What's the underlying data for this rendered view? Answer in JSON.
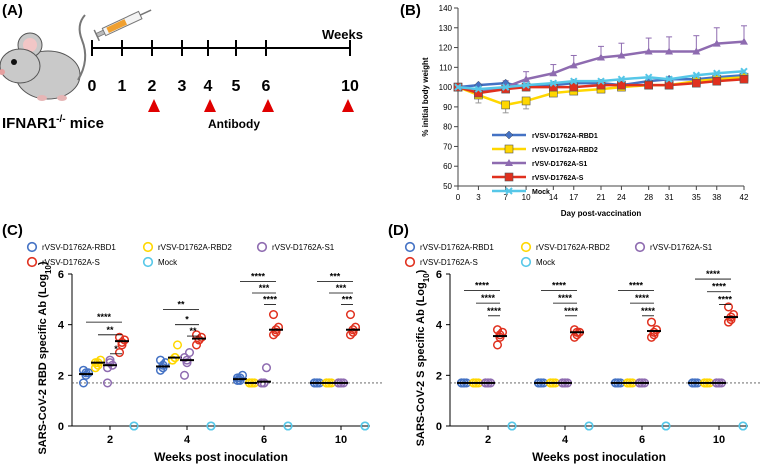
{
  "panels": {
    "a": "(A)",
    "b": "(B)",
    "c": "(C)",
    "d": "(D)"
  },
  "timeline": {
    "weeks_label": "Weeks",
    "ticks": [
      "0",
      "1",
      "2",
      "3",
      "4",
      "5",
      "6",
      "10"
    ],
    "mouse_label": "IFNAR1",
    "mouse_sup": "-/-",
    "mouse_suffix": " mice",
    "antibody_label": "Antibody",
    "antibody_weeks": [
      "2",
      "4",
      "6",
      "10"
    ]
  },
  "colors": {
    "rbd1": "#4472C4",
    "rbd2": "#FFD700",
    "s1": "#8E6BB0",
    "s": "#E0301E",
    "mock": "#56C7E8"
  },
  "chart_data": [
    {
      "type": "line",
      "panel": "B",
      "title": "",
      "xlabel": "Day post-vaccination",
      "ylabel": "% initial body weight",
      "x": [
        0,
        3,
        7,
        10,
        14,
        17,
        21,
        24,
        28,
        31,
        35,
        38,
        42
      ],
      "ylim": [
        50,
        140
      ],
      "yticks": [
        50,
        60,
        70,
        80,
        90,
        100,
        110,
        120,
        130,
        140
      ],
      "series": [
        {
          "name": "rVSV-D1762A-RBD1",
          "color": "#4472C4",
          "marker": "diamond",
          "values": [
            100,
            101,
            102,
            100,
            101,
            102,
            102,
            101,
            103,
            104,
            104,
            105,
            106
          ]
        },
        {
          "name": "rVSV-D1762A-RBD2",
          "color": "#FFD700",
          "marker": "square",
          "values": [
            100,
            96,
            91,
            93,
            97,
            98,
            99,
            100,
            101,
            101,
            103,
            104,
            105
          ]
        },
        {
          "name": "rVSV-D1762A-S1",
          "color": "#8E6BB0",
          "marker": "triangle",
          "values": [
            100,
            98,
            100,
            104,
            107,
            111,
            115,
            116,
            118,
            118,
            118,
            122,
            123
          ]
        },
        {
          "name": "rVSV-D1762A-S",
          "color": "#E0301E",
          "marker": "square",
          "values": [
            100,
            97,
            99,
            100,
            100,
            100,
            101,
            101,
            101,
            101,
            102,
            103,
            104
          ]
        },
        {
          "name": "Mock",
          "color": "#56C7E8",
          "marker": "x",
          "values": [
            100,
            99,
            100,
            101,
            102,
            103,
            103,
            104,
            105,
            104,
            106,
            107,
            108
          ]
        }
      ]
    },
    {
      "type": "scatter",
      "panel": "C",
      "xlabel": "Weeks post inoculation",
      "ylabel_pre": "SARS-CoV-2 RBD specific Ab (Log",
      "ylabel_sub": "10",
      "ylabel_post": ")",
      "categories": [
        "2",
        "4",
        "6",
        "10"
      ],
      "ylim": [
        0,
        6
      ],
      "yticks": [
        0,
        2,
        4,
        6
      ],
      "limit_of_detection": 1.7,
      "legend": [
        "rVSV-D1762A-RBD1",
        "rVSV-D1762A-RBD2",
        "rVSV-D1762A-S1",
        "rVSV-D1762A-S",
        "Mock"
      ],
      "series": [
        {
          "name": "rVSV-D1762A-RBD1",
          "color": "#4472C4",
          "points": [
            [
              1.7,
              2.0,
              2.1,
              2.2,
              2.1
            ],
            [
              2.2,
              2.3,
              2.5,
              2.6,
              2.4
            ],
            [
              1.8,
              1.9,
              2.0,
              1.9,
              1.8
            ],
            [
              1.7,
              1.7,
              1.7,
              1.7,
              1.7
            ]
          ],
          "means": [
            2.05,
            2.35,
            1.85,
            1.7
          ]
        },
        {
          "name": "rVSV-D1762A-RBD2",
          "color": "#FFD700",
          "points": [
            [
              2.3,
              2.5,
              2.6,
              2.5,
              2.4
            ],
            [
              2.6,
              2.7,
              3.2,
              2.6,
              2.7
            ],
            [
              1.7,
              1.7,
              1.7,
              1.7,
              1.7
            ],
            [
              1.7,
              1.7,
              1.7,
              1.7,
              1.7
            ]
          ],
          "means": [
            2.5,
            2.7,
            1.7,
            1.7
          ]
        },
        {
          "name": "rVSV-D1762A-S1",
          "color": "#8E6BB0",
          "points": [
            [
              1.7,
              2.5,
              2.4,
              2.3,
              2.6
            ],
            [
              2.0,
              2.6,
              2.9,
              2.7,
              2.5
            ],
            [
              1.7,
              1.7,
              2.3,
              1.7,
              1.7
            ],
            [
              1.7,
              1.7,
              1.7,
              1.7,
              1.7
            ]
          ],
          "means": [
            2.4,
            2.6,
            1.75,
            1.7
          ]
        },
        {
          "name": "rVSV-D1762A-S",
          "color": "#E0301E",
          "points": [
            [
              2.9,
              3.2,
              3.4,
              3.5,
              3.3
            ],
            [
              3.2,
              3.4,
              3.5,
              3.6,
              3.4
            ],
            [
              3.6,
              3.8,
              3.9,
              4.4,
              3.7
            ],
            [
              3.6,
              3.8,
              3.9,
              4.4,
              3.7
            ]
          ],
          "means": [
            3.35,
            3.45,
            3.8,
            3.8
          ]
        },
        {
          "name": "Mock",
          "color": "#56C7E8",
          "points": [
            [
              0,
              0
            ],
            [
              0,
              0
            ],
            [
              0,
              0
            ],
            [
              0,
              0
            ]
          ],
          "means": [
            0,
            0,
            0,
            0
          ]
        }
      ],
      "significance": [
        [
          {
            "label": "*",
            "level": 2.85
          },
          {
            "label": "**",
            "level": 3.6
          },
          {
            "label": "****",
            "level": 4.1
          }
        ],
        [
          {
            "label": "**",
            "level": 3.55
          },
          {
            "label": "*",
            "level": 4.0
          },
          {
            "label": "**",
            "level": 4.6
          }
        ],
        [
          {
            "label": "****",
            "level": 4.8
          },
          {
            "label": "***",
            "level": 5.25
          },
          {
            "label": "****",
            "level": 5.7
          }
        ],
        [
          {
            "label": "***",
            "level": 4.8
          },
          {
            "label": "***",
            "level": 5.25
          },
          {
            "label": "***",
            "level": 5.7
          }
        ]
      ]
    },
    {
      "type": "scatter",
      "panel": "D",
      "xlabel": "Weeks post inoculation",
      "ylabel_pre": "SARS-CoV-2 S specific Ab (Log",
      "ylabel_sub": "10",
      "ylabel_post": ")",
      "categories": [
        "2",
        "4",
        "6",
        "10"
      ],
      "ylim": [
        0,
        6
      ],
      "yticks": [
        0,
        2,
        4,
        6
      ],
      "limit_of_detection": 1.7,
      "legend": [
        "rVSV-D1762A-RBD1",
        "rVSV-D1762A-RBD2",
        "rVSV-D1762A-S1",
        "rVSV-D1762A-S",
        "Mock"
      ],
      "series": [
        {
          "name": "rVSV-D1762A-RBD1",
          "color": "#4472C4",
          "points": [
            [
              1.7,
              1.7,
              1.7,
              1.7,
              1.7
            ],
            [
              1.7,
              1.7,
              1.7,
              1.7,
              1.7
            ],
            [
              1.7,
              1.7,
              1.7,
              1.7,
              1.7
            ],
            [
              1.7,
              1.7,
              1.7,
              1.7,
              1.7
            ]
          ],
          "means": [
            1.7,
            1.7,
            1.7,
            1.7
          ]
        },
        {
          "name": "rVSV-D1762A-RBD2",
          "color": "#FFD700",
          "points": [
            [
              1.7,
              1.7,
              1.7,
              1.7,
              1.7
            ],
            [
              1.7,
              1.7,
              1.7,
              1.7,
              1.7
            ],
            [
              1.7,
              1.7,
              1.7,
              1.7,
              1.7
            ],
            [
              1.7,
              1.7,
              1.7,
              1.7,
              1.7
            ]
          ],
          "means": [
            1.7,
            1.7,
            1.7,
            1.7
          ]
        },
        {
          "name": "rVSV-D1762A-S1",
          "color": "#8E6BB0",
          "points": [
            [
              1.7,
              1.7,
              1.7,
              1.7,
              1.7
            ],
            [
              1.7,
              1.7,
              1.7,
              1.7,
              1.7
            ],
            [
              1.7,
              1.7,
              1.7,
              1.7,
              1.7
            ],
            [
              1.7,
              1.7,
              1.7,
              1.7,
              1.7
            ]
          ],
          "means": [
            1.7,
            1.7,
            1.7,
            1.7
          ]
        },
        {
          "name": "rVSV-D1762A-S",
          "color": "#E0301E",
          "points": [
            [
              3.2,
              3.5,
              3.7,
              3.8,
              3.6
            ],
            [
              3.5,
              3.6,
              3.7,
              3.8,
              3.7
            ],
            [
              3.5,
              3.7,
              3.8,
              4.1,
              3.6
            ],
            [
              4.1,
              4.2,
              4.4,
              4.7,
              4.3
            ]
          ],
          "means": [
            3.55,
            3.7,
            3.75,
            4.3
          ]
        },
        {
          "name": "Mock",
          "color": "#56C7E8",
          "points": [
            [
              0,
              0
            ],
            [
              0,
              0
            ],
            [
              0,
              0
            ],
            [
              0,
              0
            ]
          ],
          "means": [
            0,
            0,
            0,
            0
          ]
        }
      ],
      "significance": [
        [
          {
            "label": "****",
            "level": 4.35
          },
          {
            "label": "****",
            "level": 4.85
          },
          {
            "label": "****",
            "level": 5.35
          }
        ],
        [
          {
            "label": "****",
            "level": 4.35
          },
          {
            "label": "****",
            "level": 4.85
          },
          {
            "label": "****",
            "level": 5.35
          }
        ],
        [
          {
            "label": "****",
            "level": 4.35
          },
          {
            "label": "****",
            "level": 4.85
          },
          {
            "label": "****",
            "level": 5.35
          }
        ],
        [
          {
            "label": "****",
            "level": 4.8
          },
          {
            "label": "****",
            "level": 5.3
          },
          {
            "label": "****",
            "level": 5.8
          }
        ]
      ]
    }
  ]
}
